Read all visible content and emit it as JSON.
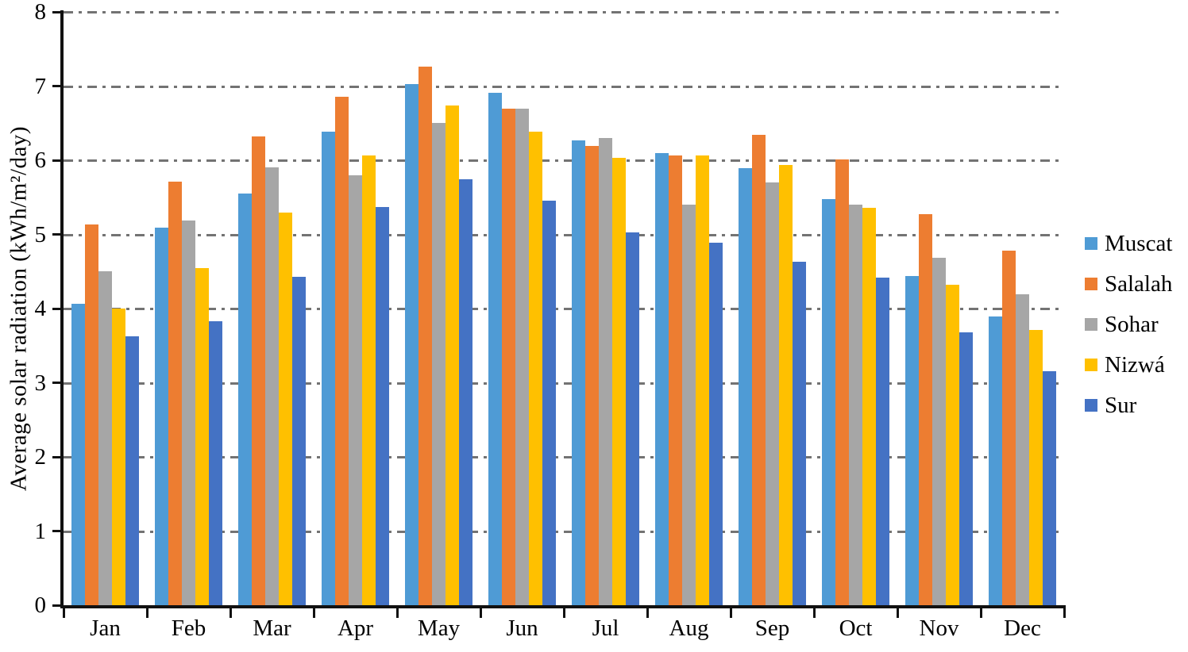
{
  "chart_data": {
    "type": "bar",
    "title": "",
    "xlabel": "",
    "ylabel": "Average solar radiation (kWh/m²/day)",
    "ylim": [
      0,
      8
    ],
    "yticks": [
      0,
      1,
      2,
      3,
      4,
      5,
      6,
      7,
      8
    ],
    "grid": "horizontal gray dash-dot lines at each integer",
    "legend_position": "right",
    "axis_color": "#111111",
    "gridline_color": "#737373",
    "categories": [
      "Jan",
      "Feb",
      "Mar",
      "Apr",
      "May",
      "Jun",
      "Jul",
      "Aug",
      "Sep",
      "Oct",
      "Nov",
      "Dec"
    ],
    "series": [
      {
        "name": "Muscat",
        "color": "#4F9BD5",
        "values": [
          4.06,
          5.09,
          5.55,
          6.39,
          7.03,
          6.91,
          6.27,
          6.1,
          5.89,
          5.48,
          4.44,
          3.89
        ]
      },
      {
        "name": "Salalah",
        "color": "#ED7D31",
        "values": [
          5.13,
          5.71,
          6.32,
          6.86,
          7.26,
          6.7,
          6.19,
          6.06,
          6.34,
          6.01,
          5.27,
          4.78
        ]
      },
      {
        "name": "Sohar",
        "color": "#A6A6A6",
        "values": [
          4.5,
          5.19,
          5.9,
          5.8,
          6.5,
          6.7,
          6.3,
          5.4,
          5.7,
          5.4,
          4.69,
          4.19
        ]
      },
      {
        "name": "Nizwá",
        "color": "#FFC000",
        "values": [
          4.0,
          4.55,
          5.29,
          6.06,
          6.74,
          6.39,
          6.03,
          6.06,
          5.94,
          5.36,
          4.32,
          3.71
        ]
      },
      {
        "name": "Sur",
        "color": "#4472C4",
        "values": [
          3.63,
          3.83,
          4.43,
          5.37,
          5.74,
          5.45,
          5.03,
          4.89,
          4.63,
          4.42,
          3.68,
          3.16
        ]
      }
    ]
  }
}
